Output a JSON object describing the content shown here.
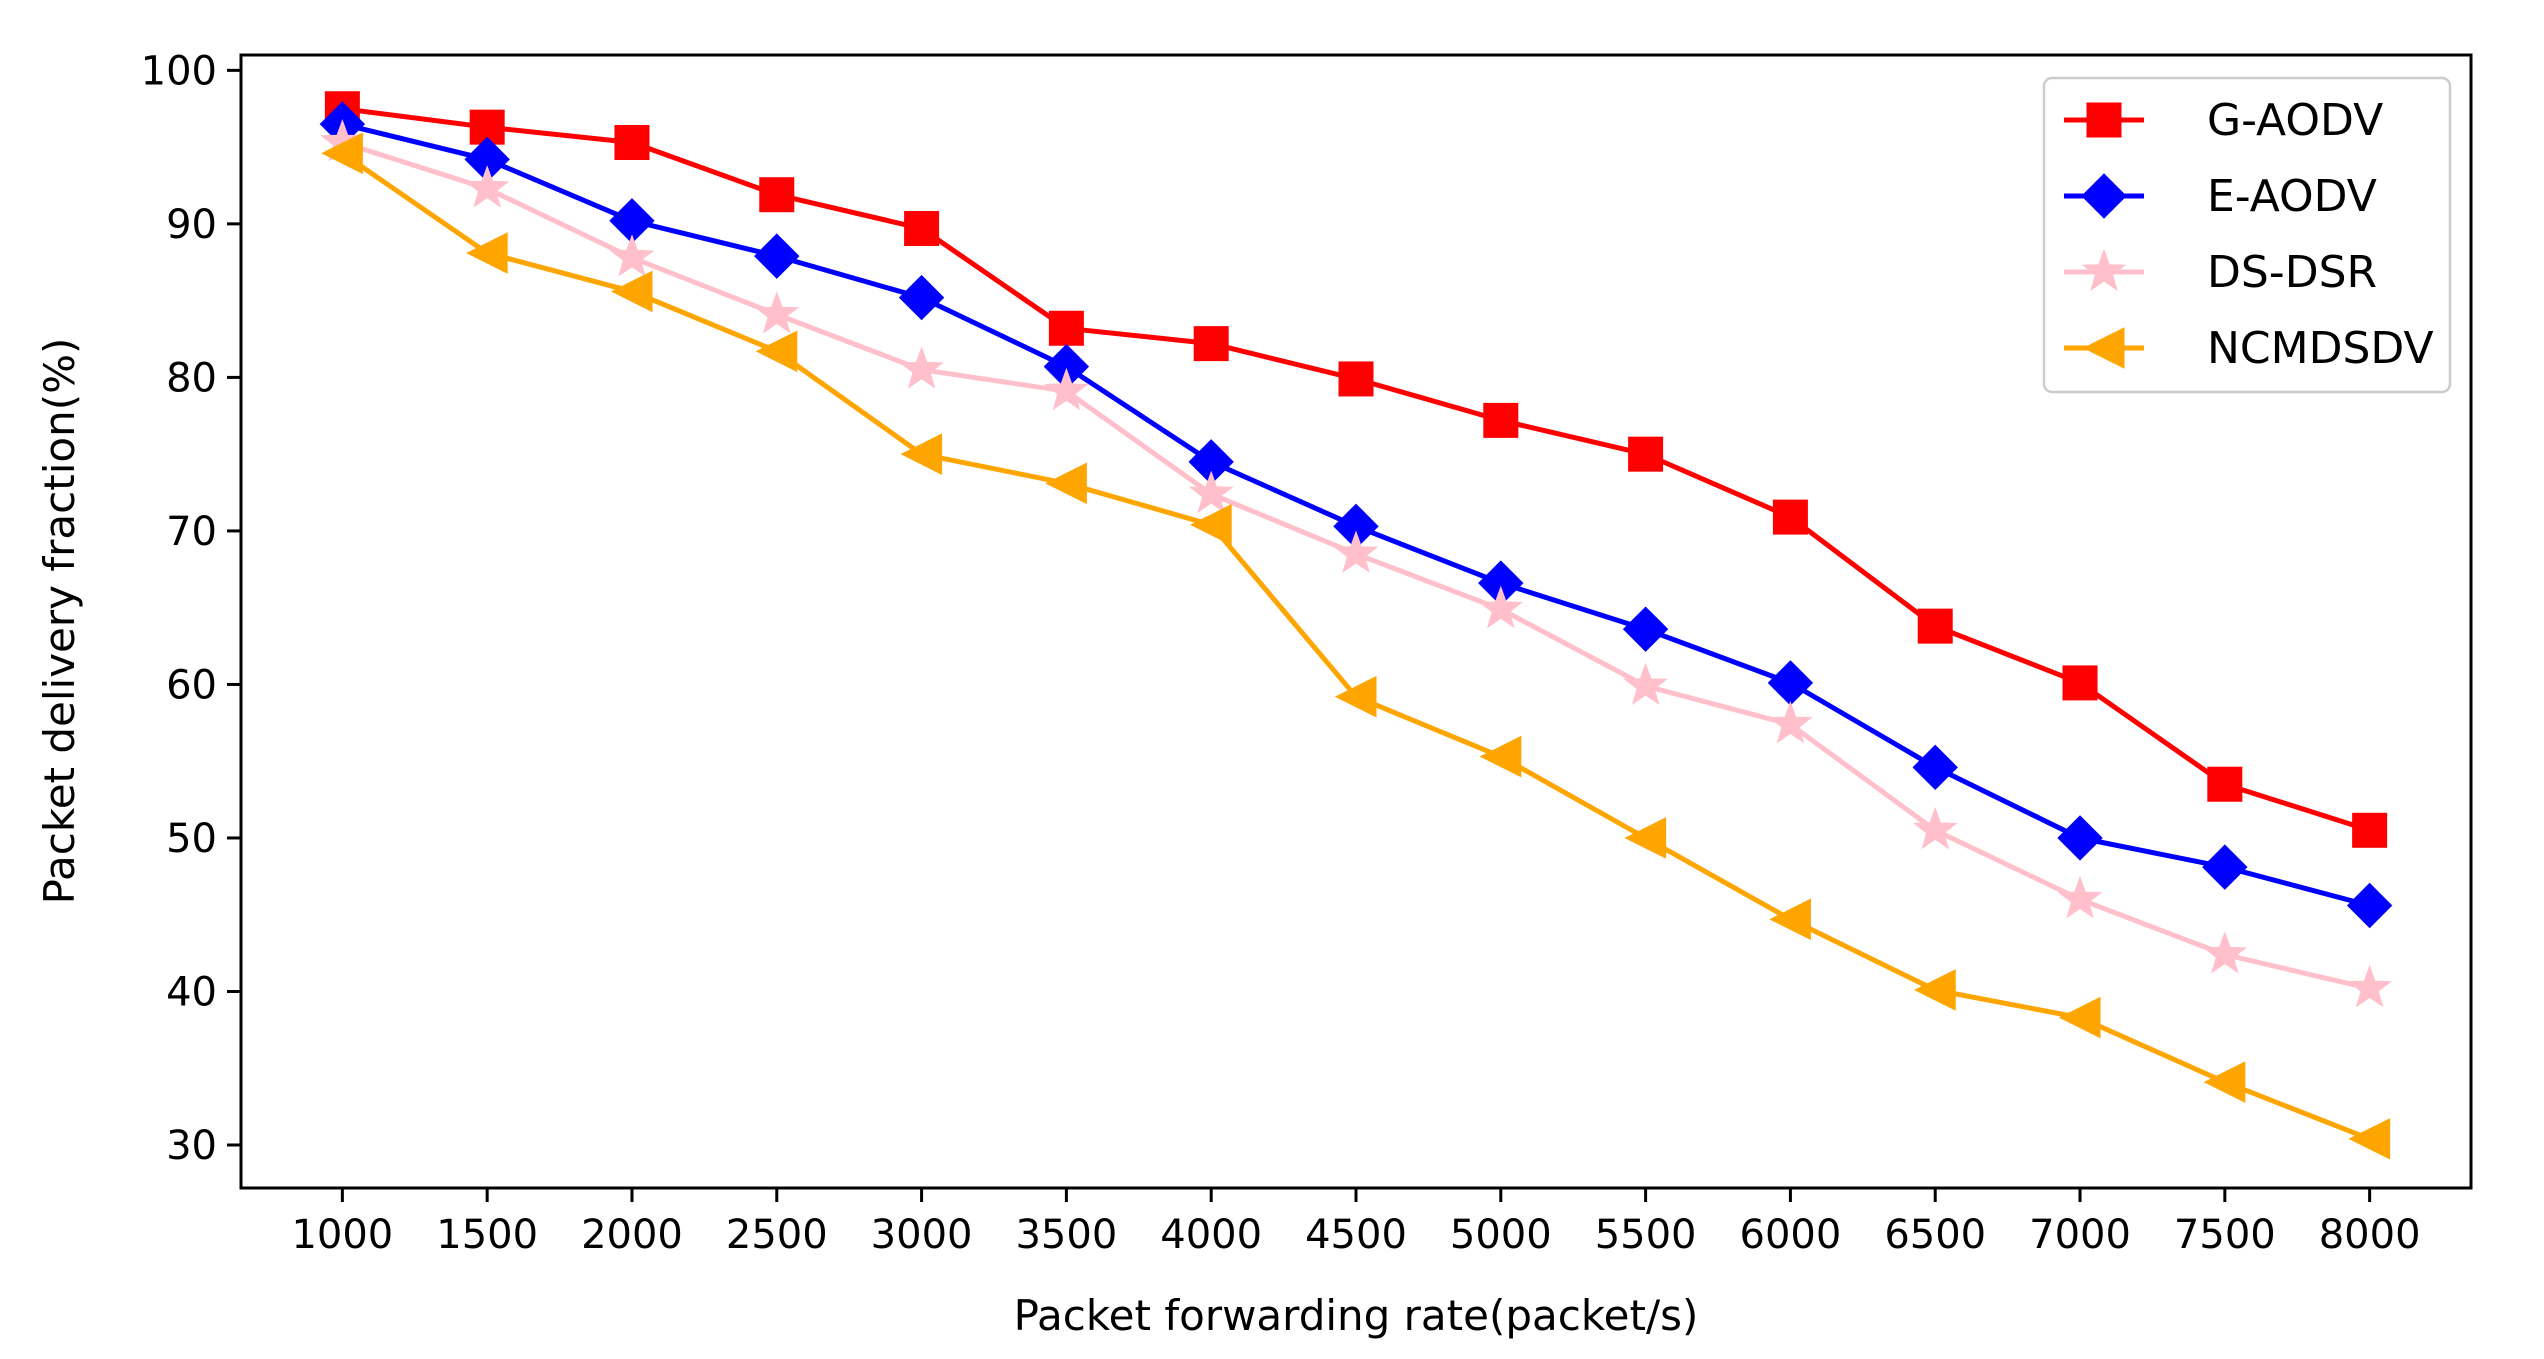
{
  "chart_data": {
    "type": "line",
    "xlabel": "Packet forwarding rate(packet/s)",
    "ylabel": "Packet delivery fraction(%)",
    "x": [
      1000,
      1500,
      2000,
      2500,
      3000,
      3500,
      4000,
      4500,
      5000,
      5500,
      6000,
      6500,
      7000,
      7500,
      8000
    ],
    "x_tick_labels": [
      "1000",
      "1500",
      "2000",
      "2500",
      "3000",
      "3500",
      "4000",
      "4500",
      "5000",
      "5500",
      "6000",
      "6500",
      "7000",
      "7500",
      "8000"
    ],
    "y_ticks": [
      30,
      40,
      50,
      60,
      70,
      80,
      90,
      100
    ],
    "y_tick_labels": [
      "30",
      "40",
      "50",
      "60",
      "70",
      "80",
      "90",
      "100"
    ],
    "xlim": [
      650,
      8350
    ],
    "ylim": [
      27.2,
      101.0
    ],
    "grid": false,
    "legend_position": "top-right",
    "series": [
      {
        "name": "G-AODV",
        "color": "#ff0000",
        "marker": "square",
        "values": [
          97.5,
          96.3,
          95.3,
          91.9,
          89.7,
          83.2,
          82.2,
          79.9,
          77.2,
          75.0,
          70.9,
          63.8,
          60.1,
          53.5,
          50.5
        ]
      },
      {
        "name": "E-AODV",
        "color": "#0000ff",
        "marker": "diamond",
        "values": [
          96.5,
          94.2,
          90.2,
          87.9,
          85.2,
          80.7,
          74.5,
          70.3,
          66.6,
          63.6,
          60.1,
          54.6,
          50.0,
          48.1,
          45.6
        ]
      },
      {
        "name": "DS-DSR",
        "color": "#ffc0cb",
        "marker": "star",
        "values": [
          95.3,
          92.3,
          87.8,
          84.1,
          80.5,
          79.1,
          72.4,
          68.5,
          64.9,
          59.9,
          57.4,
          50.5,
          46.0,
          42.4,
          40.2
        ]
      },
      {
        "name": "NCMDSDV",
        "color": "#ffa500",
        "marker": "triangle-left",
        "values": [
          94.6,
          88.1,
          85.6,
          81.7,
          75.0,
          73.1,
          70.4,
          59.2,
          55.3,
          50.0,
          44.7,
          40.1,
          38.3,
          34.1,
          30.4
        ]
      }
    ]
  }
}
